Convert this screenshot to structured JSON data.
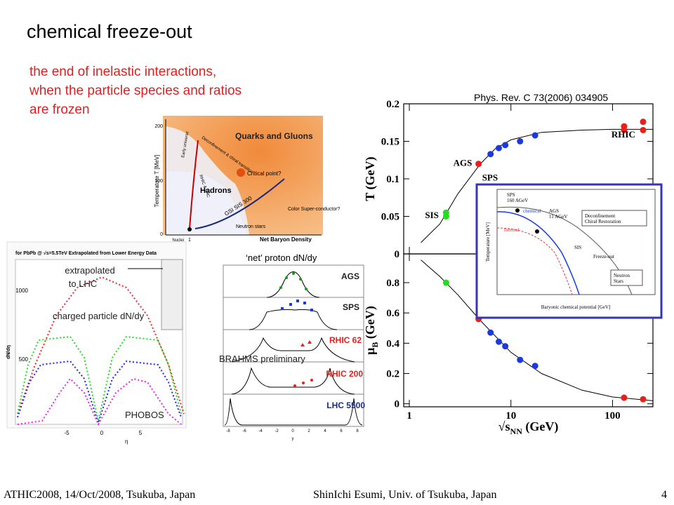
{
  "slide": {
    "title": "chemical freeze-out",
    "definition": [
      "the end of inelastic interactions,",
      "when the particle species and ratios",
      "are frozen"
    ],
    "reference": "Phys. Rev. C 73(2006) 034905"
  },
  "phase_diagram": {
    "y_axis": "Temperature T [MeV]",
    "y_ticks": [
      "200",
      "100",
      "0"
    ],
    "x_tick": "1",
    "x_axis": "Net Baryon Density",
    "labels": [
      "Quarks and Gluons",
      "Hadrons",
      "Critical point?",
      "Early universe",
      "Deconfinement & chiral transition",
      "RHIC & LHC",
      "GSI SIS 300",
      "Neutron stars",
      "Color Super-conductor?",
      "Nuclei"
    ]
  },
  "phobos_figure": {
    "title": "for PbPb @ √s=5.5TeV Extrapolated from Lower Energy Data",
    "callout": [
      "extrapolated",
      "to LHC"
    ],
    "label": "charged particle dN/dy",
    "experiment": "PHOBOS",
    "y_axis": "dN/dη",
    "y_ticks": [
      "1000",
      "500"
    ],
    "x_ticks": [
      "-5",
      "0",
      "5"
    ],
    "x_axis": "η"
  },
  "brahms_figure": {
    "title": "‘net’ proton dN/dy",
    "panels": [
      "AGS",
      "SPS",
      "RHIC 62",
      "RHIC 200",
      "LHC 5500"
    ],
    "note": "BRAHMS preliminary",
    "x_ticks": [
      "-8",
      "-6",
      "-4",
      "-2",
      "0",
      "2",
      "4",
      "6",
      "8"
    ],
    "x_axis": "y"
  },
  "inset": {
    "labels": [
      "SPS",
      "160 AGeV",
      "chemical",
      "thermal",
      "AGS",
      "11 AGeV",
      "Deconfinement",
      "Chiral Restoration",
      "Freeze-out",
      "Neutron",
      "Stars",
      "SIS"
    ],
    "y_axis": "Temperature [MeV]",
    "x_axis": "Baryonic chemical potential [GeV]"
  },
  "chart_data": [
    {
      "type": "scatter",
      "ylabel": "T (GeV)",
      "xlog": true,
      "xlim": [
        0.88,
        250
      ],
      "ylim": [
        0,
        0.2
      ],
      "xticks": [
        1,
        10,
        100
      ],
      "yticks": [
        0,
        0.05,
        0.1,
        0.15,
        0.2
      ],
      "series": [
        {
          "name": "SIS",
          "color": "#22dd22",
          "x": [
            2.3,
            2.3
          ],
          "values": [
            0.055,
            0.05
          ]
        },
        {
          "name": "AGS",
          "color": "#e8201a",
          "x": [
            4.8
          ],
          "values": [
            0.12
          ]
        },
        {
          "name": "SPS",
          "color": "#1a3ae0",
          "x": [
            6.3,
            7.6,
            8.8,
            12.3,
            17.3
          ],
          "values": [
            0.133,
            0.141,
            0.145,
            0.15,
            0.158
          ]
        },
        {
          "name": "RHIC",
          "color": "#e8201a",
          "x": [
            130,
            130,
            200,
            200
          ],
          "values": [
            0.17,
            0.165,
            0.176,
            0.165
          ]
        }
      ],
      "fit": {
        "color": "#000000",
        "x": [
          1.3,
          2,
          3,
          5,
          7,
          10,
          20,
          50,
          100,
          250
        ],
        "values": [
          0.015,
          0.04,
          0.08,
          0.12,
          0.14,
          0.152,
          0.162,
          0.165,
          0.166,
          0.166
        ]
      }
    },
    {
      "type": "scatter",
      "ylabel": {
        "symbol": "μ",
        "sub": "B",
        "unit": " (GeV)"
      },
      "xlabel": {
        "root": "√s",
        "sub": "NN",
        "unit": "  (GeV)"
      },
      "xlog": true,
      "xlim": [
        0.88,
        250
      ],
      "ylim": [
        -0.02,
        0.99
      ],
      "xticks": [
        1,
        10,
        100
      ],
      "yticks": [
        0,
        0.2,
        0.4,
        0.6,
        0.8
      ],
      "series": [
        {
          "color": "#22dd22",
          "x": [
            2.3
          ],
          "values": [
            0.8
          ]
        },
        {
          "color": "#e8201a",
          "x": [
            4.8
          ],
          "values": [
            0.56
          ]
        },
        {
          "color": "#1a3ae0",
          "x": [
            6.3,
            7.6,
            8.8,
            12.3,
            17.3
          ],
          "values": [
            0.47,
            0.41,
            0.38,
            0.29,
            0.25
          ]
        },
        {
          "color": "#e8201a",
          "x": [
            130,
            200
          ],
          "values": [
            0.04,
            0.03
          ]
        }
      ],
      "fit": {
        "color": "#000000",
        "x": [
          1.3,
          2,
          3,
          5,
          10,
          20,
          50,
          100,
          250
        ],
        "values": [
          0.95,
          0.84,
          0.72,
          0.55,
          0.34,
          0.2,
          0.09,
          0.045,
          0.02
        ]
      }
    }
  ],
  "footer": {
    "left": "ATHIC2008, 14/Oct/2008, Tsukuba, Japan",
    "center": "ShinIchi Esumi, Univ. of Tsukuba, Japan",
    "page": "4"
  }
}
